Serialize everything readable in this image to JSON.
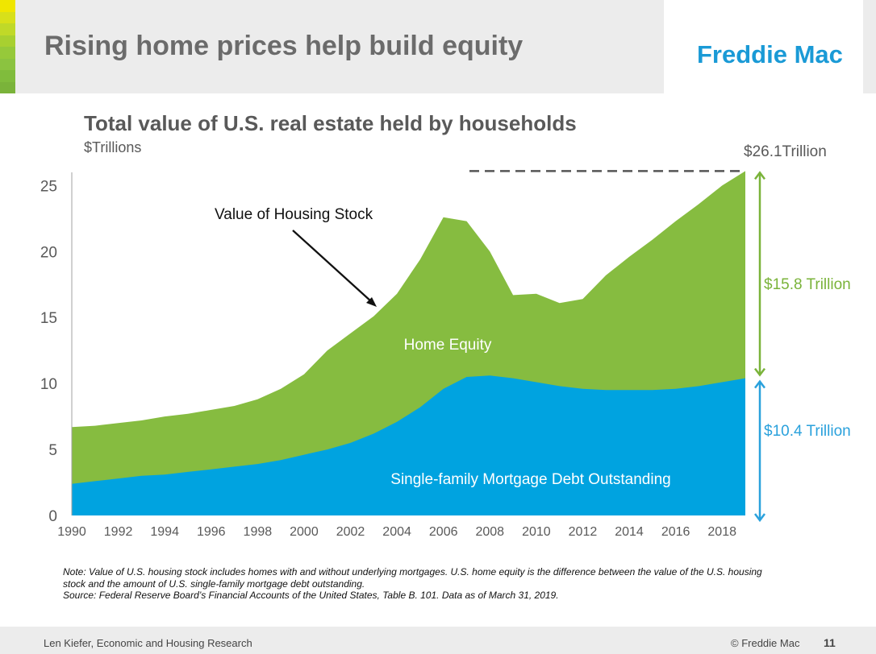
{
  "slide": {
    "title": "Rising home prices help build equity",
    "logo": "Freddie Mac",
    "stripe_colors": [
      "#f0e600",
      "#d8e01a",
      "#c0d928",
      "#a8d030",
      "#96c93a",
      "#8bc340",
      "#80bc3c",
      "#7ab33a"
    ]
  },
  "chart_data": {
    "type": "area",
    "title": "Total value of  U.S. real estate held by households",
    "subtitle": "$Trillions",
    "xlabel": "",
    "ylabel": "",
    "x_ticks": [
      "1990",
      "1992",
      "1994",
      "1996",
      "1998",
      "2000",
      "2002",
      "2004",
      "2006",
      "2008",
      "2010",
      "2012",
      "2014",
      "2016",
      "2018"
    ],
    "y_ticks": [
      "0",
      "5",
      "10",
      "15",
      "20",
      "25"
    ],
    "xlim": [
      1990,
      2019
    ],
    "ylim": [
      0,
      26
    ],
    "x": [
      1990,
      1991,
      1992,
      1993,
      1994,
      1995,
      1996,
      1997,
      1998,
      1999,
      2000,
      2001,
      2002,
      2003,
      2004,
      2005,
      2006,
      2007,
      2008,
      2009,
      2010,
      2011,
      2012,
      2013,
      2014,
      2015,
      2016,
      2017,
      2018,
      2019
    ],
    "series": [
      {
        "name": "Single-family Mortgage Debt Outstanding",
        "color": "#00a3e0",
        "values": [
          2.4,
          2.6,
          2.8,
          3.0,
          3.1,
          3.3,
          3.5,
          3.7,
          3.9,
          4.2,
          4.6,
          5.0,
          5.5,
          6.2,
          7.1,
          8.2,
          9.6,
          10.5,
          10.6,
          10.4,
          10.1,
          9.8,
          9.6,
          9.5,
          9.5,
          9.5,
          9.6,
          9.8,
          10.1,
          10.4
        ]
      },
      {
        "name": "Value of Housing Stock",
        "color": "#86bc40",
        "values": [
          6.7,
          6.8,
          7.0,
          7.2,
          7.5,
          7.7,
          8.0,
          8.3,
          8.8,
          9.6,
          10.7,
          12.5,
          13.8,
          15.1,
          16.8,
          19.4,
          22.6,
          22.3,
          20.0,
          16.7,
          16.8,
          16.1,
          16.4,
          18.2,
          19.6,
          20.9,
          22.3,
          23.6,
          25.0,
          26.1
        ]
      }
    ],
    "annotations": {
      "housing_stock": "Value of Housing Stock",
      "home_equity": "Home Equity",
      "debt": "Single-family Mortgage Debt Outstanding",
      "total": "$26.1Trillion",
      "equity_value": "$15.8 Trillion",
      "debt_value": "$10.4 Trillion"
    },
    "grid": false,
    "legend": "none"
  },
  "note": {
    "line1": "Note: Value of U.S. housing stock includes homes with and without underlying mortgages.  U.S. home equity is the difference between the value of the U.S. housing",
    "line2": "stock and the amount of U.S. single-family mortgage debt outstanding.",
    "line3": "Source: Federal Reserve Board’s Financial Accounts of the United States, Table B. 101. Data as of March 31, 2019."
  },
  "footer": {
    "author": "Len Kiefer, Economic and Housing Research",
    "copyright": "© Freddie Mac",
    "page": "11"
  }
}
